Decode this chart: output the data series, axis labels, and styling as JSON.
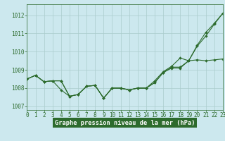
{
  "title": "Graphe pression niveau de la mer (hPa)",
  "bg_color": "#cce8ee",
  "grid_color": "#aacccc",
  "line_color": "#2d6b2d",
  "xlim": [
    0,
    23
  ],
  "ylim": [
    1006.8,
    1012.6
  ],
  "yticks": [
    1007,
    1008,
    1009,
    1010,
    1011,
    1012
  ],
  "xticks": [
    0,
    1,
    2,
    3,
    4,
    5,
    6,
    7,
    8,
    9,
    10,
    11,
    12,
    13,
    14,
    15,
    16,
    17,
    18,
    19,
    20,
    21,
    22,
    23
  ],
  "series": [
    [
      1008.5,
      1008.7,
      1008.35,
      1008.4,
      1007.9,
      1007.55,
      1007.65,
      1008.1,
      1008.15,
      1007.45,
      1008.0,
      1008.0,
      1007.9,
      1008.0,
      1008.0,
      1008.3,
      1008.85,
      1009.1,
      1009.1,
      1009.5,
      1009.55,
      1009.5,
      1009.55,
      1009.6
    ],
    [
      1008.5,
      1008.7,
      1008.35,
      1008.4,
      1008.4,
      1007.55,
      1007.65,
      1008.1,
      1008.15,
      1007.45,
      1008.0,
      1008.0,
      1007.9,
      1008.0,
      1008.0,
      1008.3,
      1008.85,
      1009.15,
      1009.15,
      1009.5,
      1010.3,
      1010.85,
      1011.5,
      1012.1
    ],
    [
      1008.5,
      1008.7,
      1008.35,
      1008.4,
      1008.4,
      1007.55,
      1007.65,
      1008.1,
      1008.15,
      1007.45,
      1008.0,
      1008.0,
      1007.9,
      1008.0,
      1008.0,
      1008.4,
      1008.9,
      1009.2,
      1009.65,
      1009.5,
      1010.35,
      1011.05,
      1011.55,
      1012.1
    ]
  ],
  "marker": "D",
  "marker_size": 2.0,
  "line_width": 0.8,
  "tick_fontsize": 5.5,
  "title_fontsize": 6.2,
  "figsize": [
    3.2,
    2.0
  ],
  "dpi": 100
}
